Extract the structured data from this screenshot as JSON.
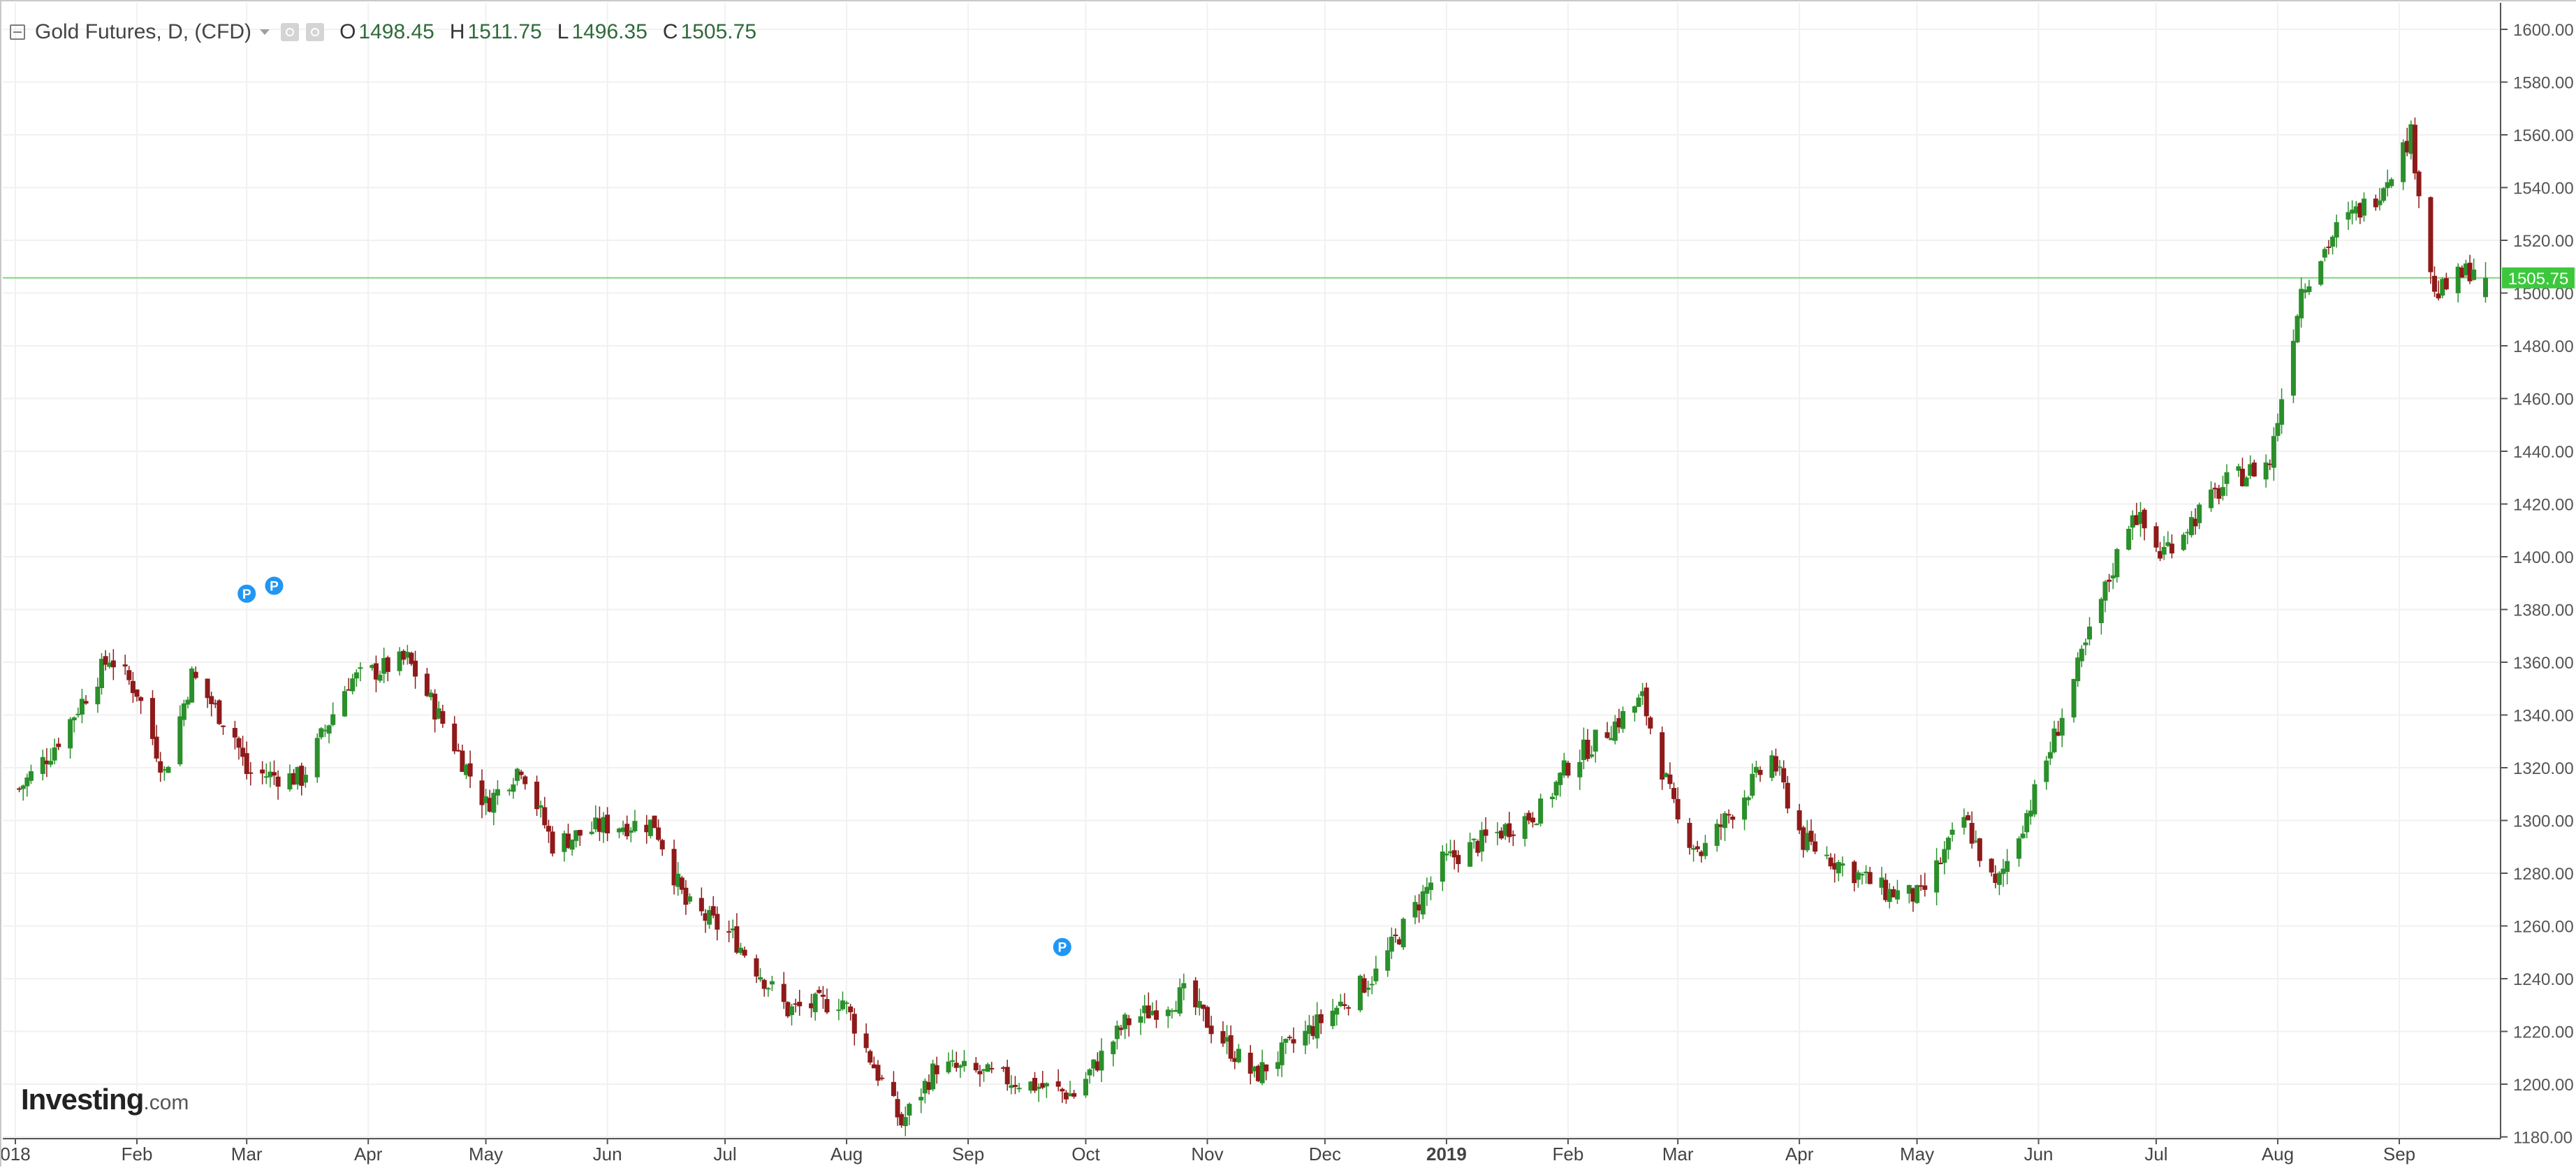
{
  "legend": {
    "title": "Gold Futures, D, (CFD)",
    "open_label": "O",
    "open": "1498.45",
    "high_label": "H",
    "high": "1511.75",
    "low_label": "L",
    "low": "1496.35",
    "close_label": "C",
    "close": "1505.75"
  },
  "brand": {
    "name": "Investing",
    "suffix": ".com"
  },
  "colors": {
    "up": "#2b8f2b",
    "down": "#8e1a1a",
    "last_price_line": "#7fd67f",
    "last_price_tag": "#3cc83c",
    "marker": "#2196f3"
  },
  "chart_data": {
    "type": "candlestick",
    "title": "Gold Futures, D, (CFD)",
    "interval": "D",
    "grid": true,
    "ylim": [
      1180,
      1600
    ],
    "yticks": [
      "1180.00",
      "1200.00",
      "1220.00",
      "1240.00",
      "1260.00",
      "1280.00",
      "1300.00",
      "1320.00",
      "1340.00",
      "1360.00",
      "1380.00",
      "1400.00",
      "1420.00",
      "1440.00",
      "1460.00",
      "1480.00",
      "1500.00",
      "1520.00",
      "1540.00",
      "1560.00",
      "1580.00",
      "1600.00"
    ],
    "xticks": [
      {
        "label": "018",
        "date": "2018-01-01"
      },
      {
        "label": "Feb",
        "date": "2018-02-01"
      },
      {
        "label": "Mar",
        "date": "2018-03-01"
      },
      {
        "label": "Apr",
        "date": "2018-04-01"
      },
      {
        "label": "May",
        "date": "2018-05-01"
      },
      {
        "label": "Jun",
        "date": "2018-06-01"
      },
      {
        "label": "Jul",
        "date": "2018-07-01"
      },
      {
        "label": "Aug",
        "date": "2018-08-01"
      },
      {
        "label": "Sep",
        "date": "2018-09-01"
      },
      {
        "label": "Oct",
        "date": "2018-10-01"
      },
      {
        "label": "Nov",
        "date": "2018-11-01"
      },
      {
        "label": "Dec",
        "date": "2018-12-01"
      },
      {
        "label": "2019",
        "date": "2019-01-01",
        "bold": true
      },
      {
        "label": "Feb",
        "date": "2019-02-01"
      },
      {
        "label": "Mar",
        "date": "2019-03-01"
      },
      {
        "label": "Apr",
        "date": "2019-04-01"
      },
      {
        "label": "May",
        "date": "2019-05-01"
      },
      {
        "label": "Jun",
        "date": "2019-06-01"
      },
      {
        "label": "Jul",
        "date": "2019-07-01"
      },
      {
        "label": "Aug",
        "date": "2019-08-01"
      },
      {
        "label": "Sep",
        "date": "2019-09-01"
      }
    ],
    "last_price": 1505.75,
    "last_price_label": "1505.75",
    "markers": [
      {
        "label": "P",
        "date": "2018-03-01",
        "price": 1386
      },
      {
        "label": "P",
        "date": "2018-03-08",
        "price": 1389
      },
      {
        "label": "P",
        "date": "2018-09-25",
        "price": 1252
      }
    ],
    "anchors": [
      [
        "2018-01-02",
        1312
      ],
      [
        "2018-01-10",
        1326
      ],
      [
        "2018-01-25",
        1362
      ],
      [
        "2018-02-01",
        1349
      ],
      [
        "2018-02-08",
        1318
      ],
      [
        "2018-02-15",
        1355
      ],
      [
        "2018-02-26",
        1332
      ],
      [
        "2018-03-01",
        1318
      ],
      [
        "2018-03-15",
        1316
      ],
      [
        "2018-03-27",
        1353
      ],
      [
        "2018-04-11",
        1361
      ],
      [
        "2018-04-20",
        1337
      ],
      [
        "2018-05-01",
        1306
      ],
      [
        "2018-05-10",
        1321
      ],
      [
        "2018-05-18",
        1291
      ],
      [
        "2018-05-31",
        1298
      ],
      [
        "2018-06-13",
        1299
      ],
      [
        "2018-06-21",
        1268
      ],
      [
        "2018-07-03",
        1256
      ],
      [
        "2018-07-17",
        1228
      ],
      [
        "2018-07-31",
        1232
      ],
      [
        "2018-08-15",
        1185
      ],
      [
        "2018-08-24",
        1207
      ],
      [
        "2018-09-14",
        1201
      ],
      [
        "2018-09-28",
        1196
      ],
      [
        "2018-10-11",
        1223
      ],
      [
        "2018-10-26",
        1234
      ],
      [
        "2018-11-13",
        1203
      ],
      [
        "2018-11-30",
        1224
      ],
      [
        "2018-12-14",
        1242
      ],
      [
        "2018-12-31",
        1284
      ],
      [
        "2019-01-10",
        1292
      ],
      [
        "2019-01-25",
        1304
      ],
      [
        "2019-02-01",
        1321
      ],
      [
        "2019-02-20",
        1346
      ],
      [
        "2019-03-01",
        1299
      ],
      [
        "2019-03-07",
        1288
      ],
      [
        "2019-03-25",
        1324
      ],
      [
        "2019-04-02",
        1292
      ],
      [
        "2019-04-23",
        1273
      ],
      [
        "2019-05-02",
        1271
      ],
      [
        "2019-05-13",
        1301
      ],
      [
        "2019-05-21",
        1274
      ],
      [
        "2019-05-31",
        1310
      ],
      [
        "2019-06-20",
        1396
      ],
      [
        "2019-06-25",
        1418
      ],
      [
        "2019-07-02",
        1401
      ],
      [
        "2019-07-19",
        1428
      ],
      [
        "2019-07-30",
        1436
      ],
      [
        "2019-08-07",
        1502
      ],
      [
        "2019-08-16",
        1524
      ],
      [
        "2019-08-26",
        1537
      ],
      [
        "2019-09-04",
        1560
      ],
      [
        "2019-09-10",
        1499
      ],
      [
        "2019-09-20",
        1510
      ],
      [
        "2019-09-23",
        1505.75
      ]
    ]
  }
}
